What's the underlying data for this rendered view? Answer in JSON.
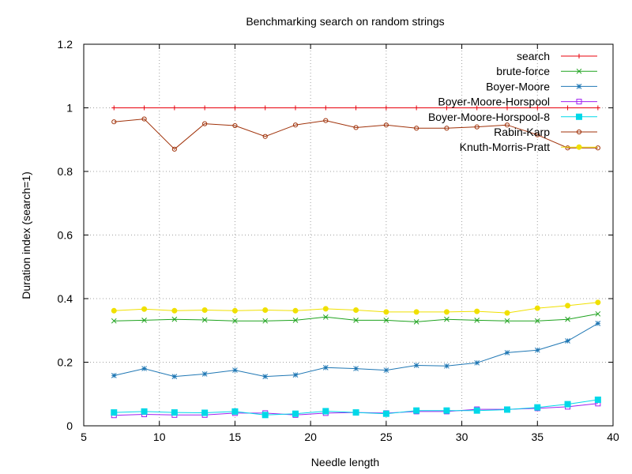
{
  "chart_data": {
    "type": "line",
    "title": "Benchmarking search on random strings",
    "xlabel": "Needle length",
    "ylabel": "Duration index (search=1)",
    "xlim": [
      5,
      40
    ],
    "ylim": [
      0,
      1.2
    ],
    "grid": true,
    "legend_position": "top-right",
    "x": [
      7,
      9,
      11,
      13,
      15,
      17,
      19,
      21,
      23,
      25,
      27,
      29,
      31,
      33,
      35,
      37,
      39
    ],
    "xticks": [
      5,
      10,
      15,
      20,
      25,
      30,
      35,
      40
    ],
    "yticks": [
      0,
      0.2,
      0.4,
      0.6,
      0.8,
      1,
      1.2
    ],
    "xtick_labels": [
      "5",
      "10",
      "15",
      "20",
      "25",
      "30",
      "35",
      "40"
    ],
    "ytick_labels": [
      "0",
      "0.2",
      "0.4",
      "0.6",
      "0.8",
      "1",
      "1.2"
    ],
    "series": [
      {
        "name": "search",
        "color": "#e8000b",
        "marker": "plus",
        "values": [
          1,
          1,
          1,
          1,
          1,
          1,
          1,
          1,
          1,
          1,
          1,
          1,
          1,
          1,
          1,
          1,
          1
        ]
      },
      {
        "name": "brute-force",
        "color": "#1fa31f",
        "marker": "cross",
        "values": [
          0.33,
          0.332,
          0.335,
          0.333,
          0.33,
          0.33,
          0.332,
          0.342,
          0.332,
          0.332,
          0.327,
          0.335,
          0.332,
          0.33,
          0.33,
          0.335,
          0.352
        ]
      },
      {
        "name": "Boyer-Moore",
        "color": "#1f77b4",
        "marker": "star",
        "values": [
          0.158,
          0.18,
          0.155,
          0.163,
          0.175,
          0.155,
          0.16,
          0.183,
          0.18,
          0.175,
          0.19,
          0.188,
          0.198,
          0.23,
          0.238,
          0.267,
          0.322
        ]
      },
      {
        "name": "Boyer-Moore-Horspool",
        "color": "#a020f0",
        "marker": "square-open",
        "values": [
          0.033,
          0.036,
          0.034,
          0.034,
          0.04,
          0.04,
          0.034,
          0.04,
          0.042,
          0.04,
          0.045,
          0.045,
          0.052,
          0.052,
          0.055,
          0.06,
          0.07
        ]
      },
      {
        "name": "Boyer-Moore-Horspool-8",
        "color": "#00d8e8",
        "marker": "square-filled",
        "values": [
          0.042,
          0.045,
          0.042,
          0.041,
          0.045,
          0.034,
          0.038,
          0.046,
          0.042,
          0.038,
          0.048,
          0.048,
          0.048,
          0.051,
          0.058,
          0.068,
          0.082
        ]
      },
      {
        "name": "Rabin-Karp",
        "color": "#a0320a",
        "marker": "circle-open",
        "values": [
          0.956,
          0.965,
          0.87,
          0.95,
          0.944,
          0.91,
          0.946,
          0.96,
          0.938,
          0.946,
          0.936,
          0.936,
          0.94,
          0.946,
          0.915,
          0.874,
          0.874
        ]
      },
      {
        "name": "Knuth-Morris-Pratt",
        "color": "#f0e000",
        "marker": "circle-filled",
        "values": [
          0.362,
          0.367,
          0.362,
          0.364,
          0.362,
          0.364,
          0.362,
          0.368,
          0.364,
          0.358,
          0.358,
          0.358,
          0.36,
          0.355,
          0.37,
          0.378,
          0.388
        ]
      }
    ]
  }
}
